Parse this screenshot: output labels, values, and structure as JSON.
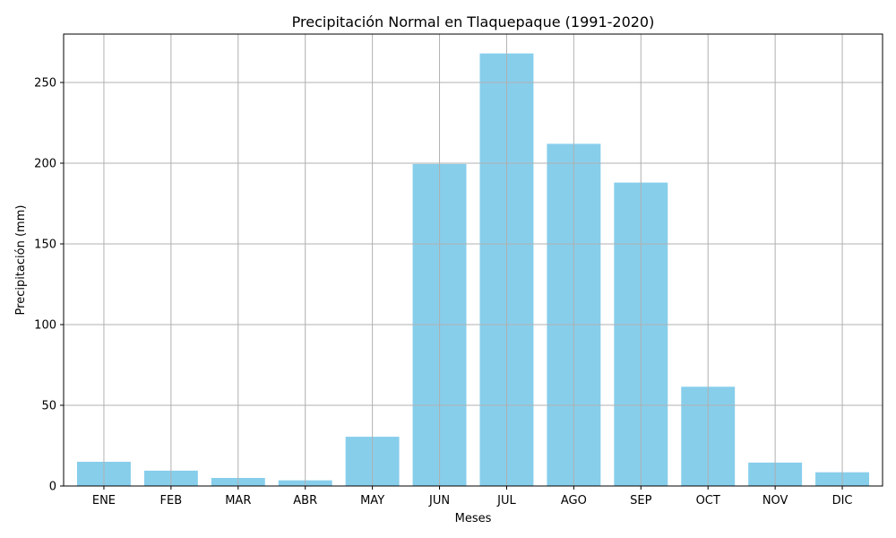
{
  "chart_data": {
    "type": "bar",
    "title": "Precipitación Normal en Tlaquepaque (1991-2020)",
    "xlabel": "Meses",
    "ylabel": "Precipitación (mm)",
    "categories": [
      "ENE",
      "FEB",
      "MAR",
      "ABR",
      "MAY",
      "JUN",
      "JUL",
      "AGO",
      "SEP",
      "OCT",
      "NOV",
      "DIC"
    ],
    "values": [
      15,
      9.5,
      5,
      3.5,
      30.5,
      199.5,
      268,
      212,
      188,
      61.5,
      14.5,
      8.5
    ],
    "ylim": [
      0,
      280
    ],
    "yticks": [
      0,
      50,
      100,
      150,
      200,
      250
    ],
    "grid": true,
    "bar_color": "#87ceeb"
  }
}
